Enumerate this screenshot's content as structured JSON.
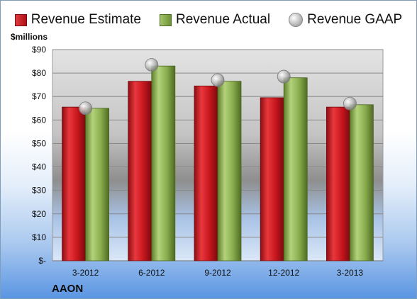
{
  "legend": {
    "estimate": "Revenue Estimate",
    "actual": "Revenue Actual",
    "gaap": "Revenue GAAP"
  },
  "unit_label": "$millions",
  "company": "AAON",
  "colors": {
    "estimate": "#c8161d",
    "actual": "#8aad4f",
    "gaap": "#b0b0b0"
  },
  "chart_data": {
    "type": "bar",
    "categories": [
      "3-2012",
      "6-2012",
      "9-2012",
      "12-2012",
      "3-2013"
    ],
    "series": [
      {
        "name": "Revenue Estimate",
        "values": [
          65.5,
          76.5,
          74.5,
          69.5,
          65.5
        ]
      },
      {
        "name": "Revenue Actual",
        "values": [
          65,
          83,
          76.5,
          78,
          66.5
        ]
      },
      {
        "name": "Revenue GAAP",
        "values": [
          65,
          83.5,
          77,
          78.5,
          67
        ]
      }
    ],
    "ylim": [
      0,
      90
    ],
    "yticks": [
      0,
      10,
      20,
      30,
      40,
      50,
      60,
      70,
      80,
      90
    ],
    "ytick_labels": [
      "$-",
      "$10",
      "$20",
      "$30",
      "$40",
      "$50",
      "$60",
      "$70",
      "$80",
      "$90"
    ],
    "grid": true,
    "legend_position": "top"
  }
}
